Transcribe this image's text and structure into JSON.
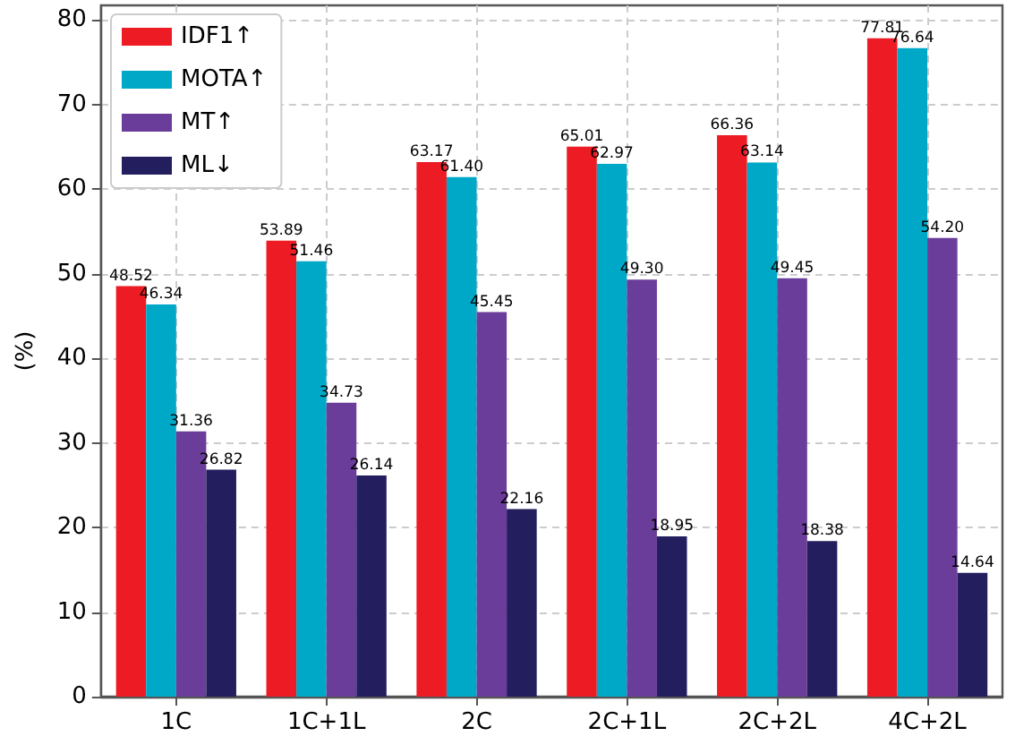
{
  "chart_data": {
    "type": "bar",
    "ylabel": "(%)",
    "categories": [
      "1C",
      "1C+1L",
      "2C",
      "2C+1L",
      "2C+2L",
      "4C+2L"
    ],
    "series": [
      {
        "name": "IDF1↑",
        "color": "#ed1c24",
        "values": [
          48.52,
          53.89,
          63.17,
          65.01,
          66.36,
          77.81
        ],
        "value_labels": [
          "48.52",
          "53.89",
          "63.17",
          "65.01",
          "66.36",
          "77.81"
        ]
      },
      {
        "name": "MOTA↑",
        "color": "#00a8c8",
        "values": [
          46.34,
          51.46,
          61.4,
          62.97,
          63.14,
          76.64
        ],
        "value_labels": [
          "46.34",
          "51.46",
          "61.40",
          "62.97",
          "63.14",
          "76.64"
        ]
      },
      {
        "name": "MT↑",
        "color": "#6a3d9a",
        "values": [
          31.36,
          34.73,
          45.45,
          49.3,
          49.45,
          54.2
        ],
        "value_labels": [
          "31.36",
          "34.73",
          "45.45",
          "49.30",
          "49.45",
          "54.20"
        ]
      },
      {
        "name": "ML↓",
        "color": "#231f5e",
        "values": [
          26.82,
          26.14,
          22.16,
          18.95,
          18.38,
          14.64
        ],
        "value_labels": [
          "26.82",
          "26.14",
          "22.16",
          "18.95",
          "18.38",
          "14.64"
        ]
      }
    ],
    "ylim": [
      0,
      81.7
    ],
    "yticks": [
      0,
      10,
      20,
      30,
      40,
      50,
      60,
      70,
      80
    ],
    "grid": true,
    "legend": "top left"
  }
}
